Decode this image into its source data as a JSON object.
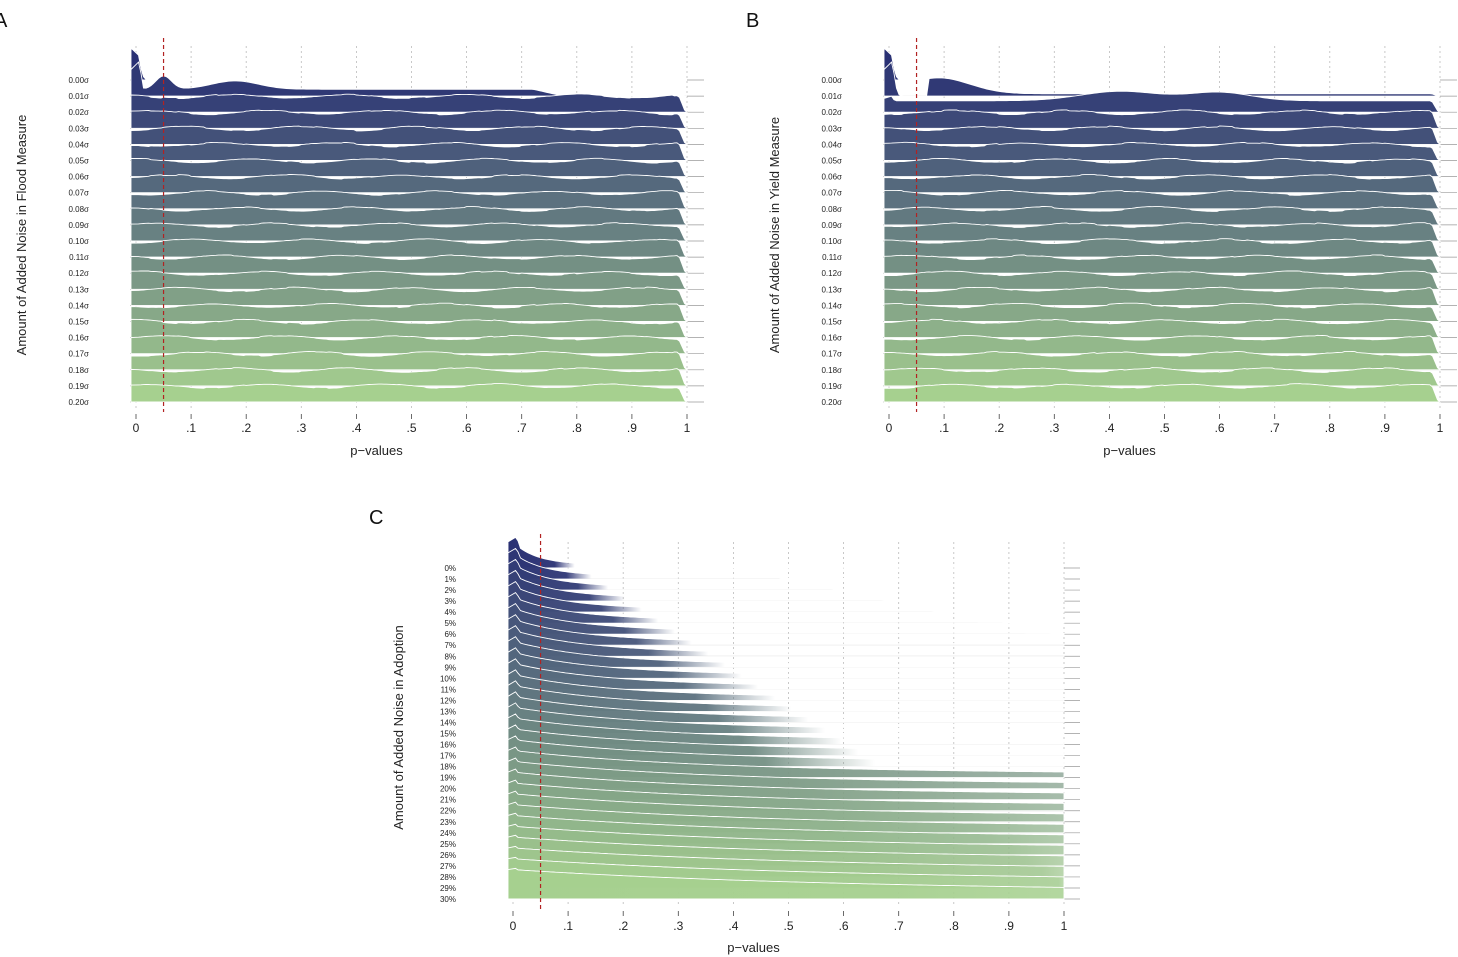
{
  "figure": {
    "panels": [
      "A",
      "B",
      "C"
    ]
  },
  "chart_data": [
    {
      "panel": "A",
      "type": "ridgeline",
      "ylabel": "Amount of Added Noise in Flood Measure",
      "xlabel": "p−values",
      "xlim": [
        0,
        1
      ],
      "xticks": [
        "0",
        ".1",
        ".2",
        ".3",
        ".4",
        ".5",
        ".6",
        ".7",
        ".8",
        ".9",
        "1"
      ],
      "reference_line_x": 0.05,
      "colors": {
        "ridge_start": "#2a3174",
        "ridge_end": "#a6d08f",
        "reference_line": "#b22222"
      },
      "rows": [
        "0.00σ",
        "0.01σ",
        "0.02σ",
        "0.03σ",
        "0.04σ",
        "0.05σ",
        "0.06σ",
        "0.07σ",
        "0.08σ",
        "0.09σ",
        "0.10σ",
        "0.11σ",
        "0.12σ",
        "0.13σ",
        "0.14σ",
        "0.15σ",
        "0.16σ",
        "0.17σ",
        "0.18σ",
        "0.19σ",
        "0.20σ"
      ]
    },
    {
      "panel": "B",
      "type": "ridgeline",
      "ylabel": "Amount of Added Noise in Yield Measure",
      "xlabel": "p−values",
      "xlim": [
        0,
        1
      ],
      "xticks": [
        "0",
        ".1",
        ".2",
        ".3",
        ".4",
        ".5",
        ".6",
        ".7",
        ".8",
        ".9",
        "1"
      ],
      "reference_line_x": 0.05,
      "colors": {
        "ridge_start": "#2a3174",
        "ridge_end": "#a6d08f",
        "reference_line": "#b22222"
      },
      "rows": [
        "0.00σ",
        "0.01σ",
        "0.02σ",
        "0.03σ",
        "0.04σ",
        "0.05σ",
        "0.06σ",
        "0.07σ",
        "0.08σ",
        "0.09σ",
        "0.10σ",
        "0.11σ",
        "0.12σ",
        "0.13σ",
        "0.14σ",
        "0.15σ",
        "0.16σ",
        "0.17σ",
        "0.18σ",
        "0.19σ",
        "0.20σ"
      ]
    },
    {
      "panel": "C",
      "type": "ridgeline",
      "ylabel": "Amount of Added Noise in Adoption",
      "xlabel": "p−values",
      "xlim": [
        0,
        1
      ],
      "xticks": [
        "0",
        ".1",
        ".2",
        ".3",
        ".4",
        ".5",
        ".6",
        ".7",
        ".8",
        ".9",
        "1"
      ],
      "reference_line_x": 0.05,
      "colors": {
        "ridge_start": "#2a3174",
        "ridge_end": "#a6d08f",
        "reference_line": "#b22222"
      },
      "rows": [
        "0%",
        "1%",
        "2%",
        "3%",
        "4%",
        "5%",
        "6%",
        "7%",
        "8%",
        "9%",
        "10%",
        "11%",
        "12%",
        "13%",
        "14%",
        "15%",
        "16%",
        "17%",
        "18%",
        "19%",
        "20%",
        "21%",
        "22%",
        "23%",
        "24%",
        "25%",
        "26%",
        "27%",
        "28%",
        "29%",
        "30%"
      ]
    }
  ]
}
